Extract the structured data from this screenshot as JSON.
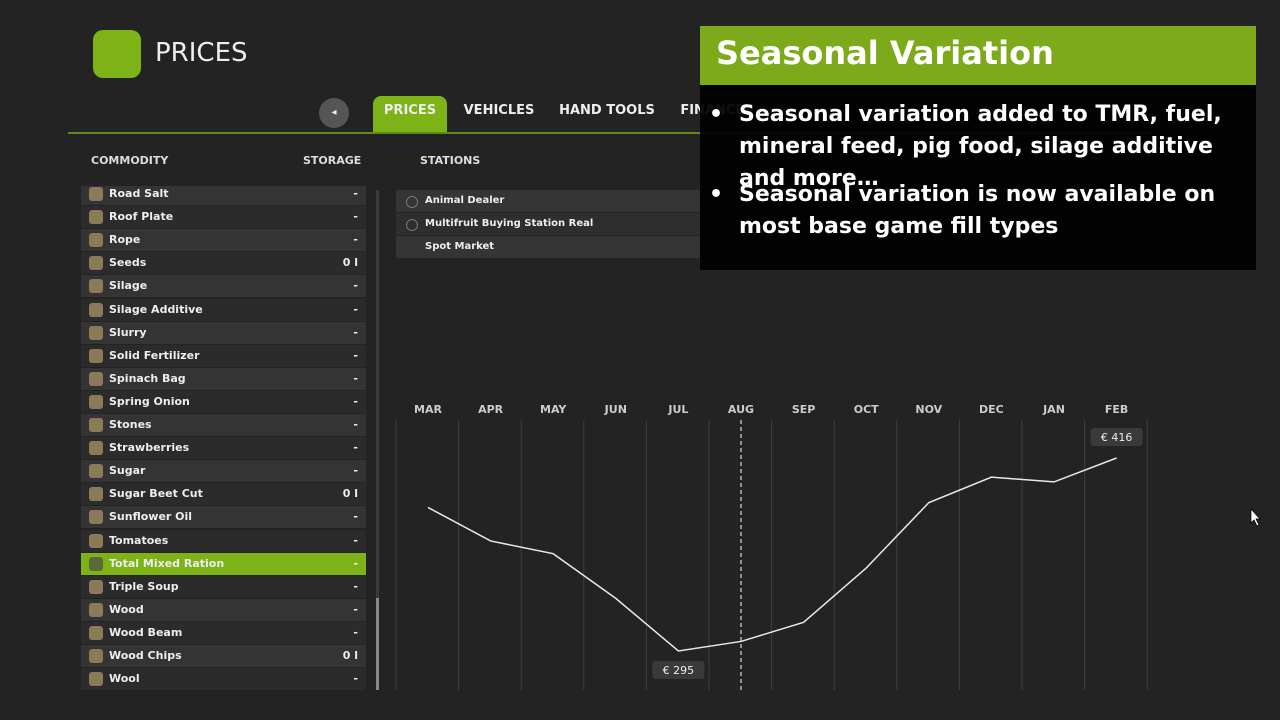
{
  "header": {
    "title": "PRICES"
  },
  "tabs": [
    "PRICES",
    "VEHICLES",
    "HAND TOOLS",
    "FINANCES"
  ],
  "columns": {
    "commodity": "COMMODITY",
    "storage": "STORAGE",
    "stations": "STATIONS"
  },
  "commodities": [
    {
      "name": "Road Salt",
      "storage": "-"
    },
    {
      "name": "Roof Plate",
      "storage": "-"
    },
    {
      "name": "Rope",
      "storage": "-"
    },
    {
      "name": "Seeds",
      "storage": "0 l"
    },
    {
      "name": "Silage",
      "storage": "-"
    },
    {
      "name": "Silage Additive",
      "storage": "-"
    },
    {
      "name": "Slurry",
      "storage": "-"
    },
    {
      "name": "Solid Fertilizer",
      "storage": "-"
    },
    {
      "name": "Spinach Bag",
      "storage": "-"
    },
    {
      "name": "Spring Onion",
      "storage": "-"
    },
    {
      "name": "Stones",
      "storage": "-"
    },
    {
      "name": "Strawberries",
      "storage": "-"
    },
    {
      "name": "Sugar",
      "storage": "-"
    },
    {
      "name": "Sugar Beet Cut",
      "storage": "0 l"
    },
    {
      "name": "Sunflower Oil",
      "storage": "-"
    },
    {
      "name": "Tomatoes",
      "storage": "-"
    },
    {
      "name": "Total Mixed Ration",
      "storage": "-",
      "selected": true
    },
    {
      "name": "Triple Soup",
      "storage": "-"
    },
    {
      "name": "Wood",
      "storage": "-"
    },
    {
      "name": "Wood Beam",
      "storage": "-"
    },
    {
      "name": "Wood Chips",
      "storage": "0 l"
    },
    {
      "name": "Wool",
      "storage": "-"
    }
  ],
  "stations": [
    "Animal Dealer",
    "Multifruit Buying Station Real",
    "Spot Market"
  ],
  "chart": {
    "type": "line",
    "categories": [
      "MAR",
      "APR",
      "MAY",
      "JUN",
      "JUL",
      "AUG",
      "SEP",
      "OCT",
      "NOV",
      "DEC",
      "JAN",
      "FEB"
    ],
    "values": [
      385,
      364,
      356,
      328,
      295,
      301,
      313,
      347,
      388,
      404,
      401,
      416
    ],
    "value_labels": [
      null,
      null,
      null,
      null,
      "€ 295",
      null,
      null,
      null,
      null,
      null,
      null,
      "€ 416"
    ],
    "color": "#e8e8e8"
  },
  "overlay": {
    "title": "Seasonal Variation",
    "bullets": [
      "Seasonal variation added to TMR, fuel, mineral feed, pig food, silage additive and more…",
      "Seasonal variation is now available on most base game fill types"
    ]
  }
}
